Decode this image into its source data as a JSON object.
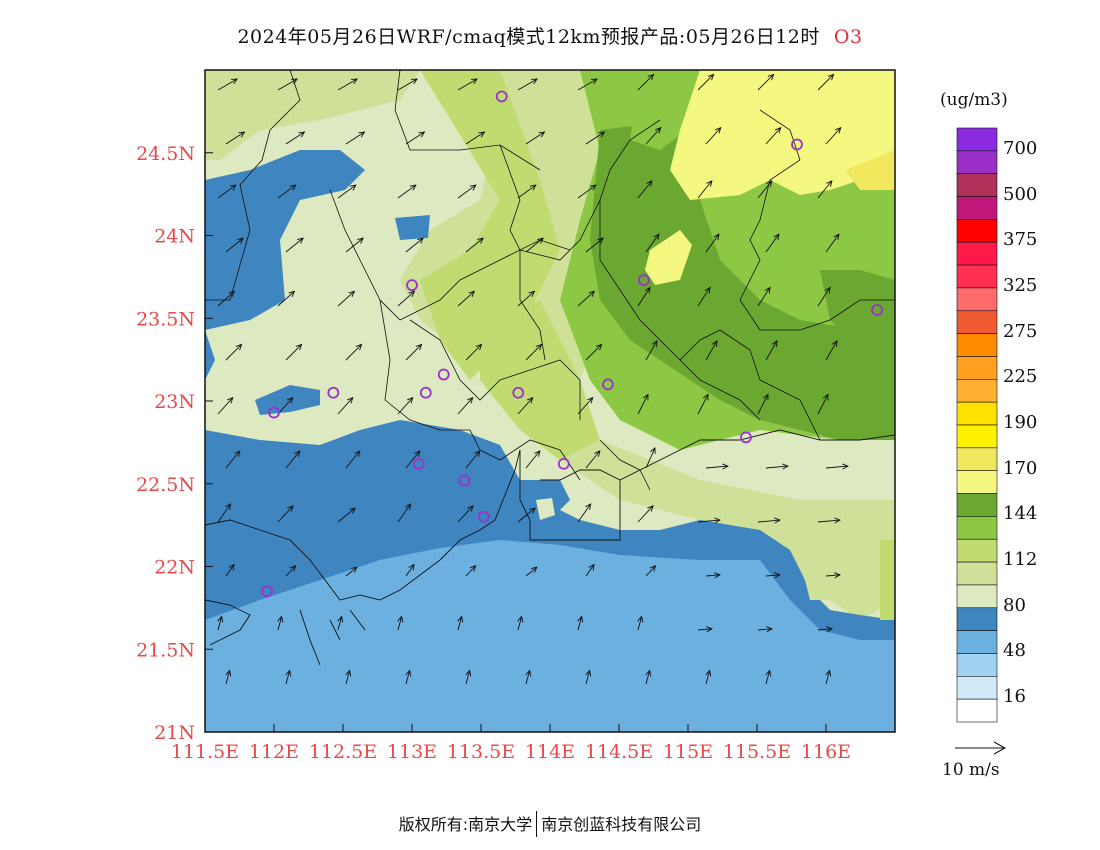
{
  "title": {
    "main": "2024年05月26日WRF/cmaq模式12km预报产品:05月26日12时",
    "pollutant": "O3"
  },
  "footer": {
    "left": "版权所有:南京大学",
    "right": "南京创蓝科技有限公司"
  },
  "axes": {
    "x_ticks": [
      "111.5E",
      "112E",
      "112.5E",
      "113E",
      "113.5E",
      "114E",
      "114.5E",
      "115E",
      "115.5E",
      "116E"
    ],
    "y_ticks": [
      "21N",
      "21.5N",
      "22N",
      "22.5N",
      "23N",
      "23.5N",
      "24N",
      "24.5N"
    ],
    "x_range": [
      111.5,
      116.5
    ],
    "y_range": [
      21.0,
      25.0
    ],
    "tick_color": "#e84848"
  },
  "legend": {
    "unit": "(ug/m3)",
    "labels": [
      "700",
      "500",
      "375",
      "325",
      "275",
      "225",
      "190",
      "170",
      "144",
      "112",
      "80",
      "48",
      "16"
    ],
    "colors": [
      "#8a2be2",
      "#9b30c8",
      "#b0305a",
      "#c0187a",
      "#ff0000",
      "#ff1a4a",
      "#ff3050",
      "#ff6a6a",
      "#f05a30",
      "#ff8c00",
      "#ffa020",
      "#ffb030",
      "#ffe100",
      "#fff200",
      "#f2e860",
      "#f4f880",
      "#6aa832",
      "#8cc843",
      "#c0dc70",
      "#cfe098",
      "#dde9c0",
      "#3f86c0",
      "#6cb0e0",
      "#9fd2f0",
      "#d0eaf8",
      "#ffffff"
    ]
  },
  "wind_ref": {
    "label": "10 m/s"
  },
  "station_color": "#9a32cd",
  "stations": [
    {
      "lon": 113.65,
      "lat": 24.84
    },
    {
      "lon": 115.79,
      "lat": 24.55
    },
    {
      "lon": 113.0,
      "lat": 23.7
    },
    {
      "lon": 114.68,
      "lat": 23.73
    },
    {
      "lon": 116.37,
      "lat": 23.55
    },
    {
      "lon": 113.23,
      "lat": 23.16
    },
    {
      "lon": 113.1,
      "lat": 23.05
    },
    {
      "lon": 113.77,
      "lat": 23.05
    },
    {
      "lon": 114.42,
      "lat": 23.1
    },
    {
      "lon": 112.43,
      "lat": 23.05
    },
    {
      "lon": 112.0,
      "lat": 22.93
    },
    {
      "lon": 113.05,
      "lat": 22.62
    },
    {
      "lon": 113.38,
      "lat": 22.52
    },
    {
      "lon": 114.1,
      "lat": 22.62
    },
    {
      "lon": 115.42,
      "lat": 22.78
    },
    {
      "lon": 113.52,
      "lat": 22.3
    },
    {
      "lon": 111.95,
      "lat": 21.85
    }
  ]
}
